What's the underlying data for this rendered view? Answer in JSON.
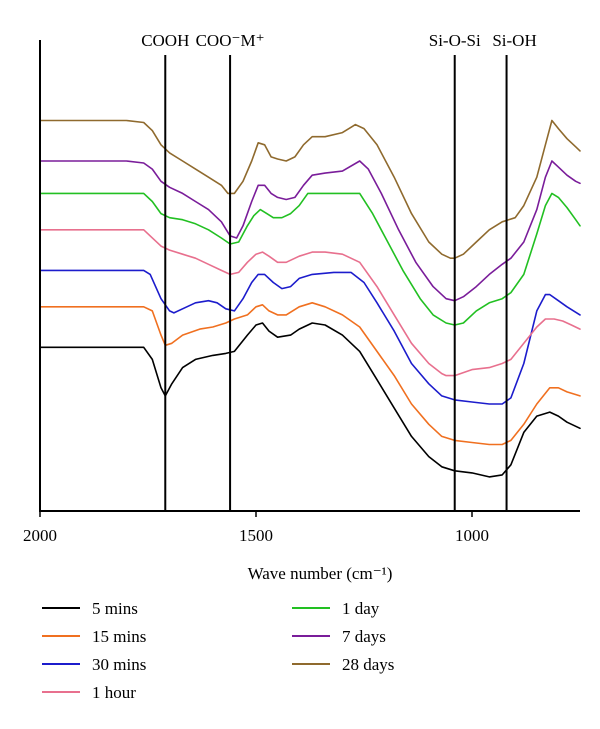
{
  "chart_data": {
    "type": "line",
    "title": "",
    "xlabel": "Wave number (cm⁻¹)",
    "ylabel": "",
    "x_reversed": true,
    "xlim": [
      2000,
      750
    ],
    "xticks": [
      {
        "value": 2000,
        "label": "2000"
      },
      {
        "value": 1500,
        "label": "1500"
      },
      {
        "value": 1000,
        "label": "1000"
      }
    ],
    "grid": false,
    "legend_position": "bottom",
    "annotations": [
      {
        "x": 1710,
        "label": "COOH"
      },
      {
        "x": 1560,
        "label": "COO⁻M⁺"
      },
      {
        "x": 1040,
        "label": "Si-O-Si"
      },
      {
        "x": 920,
        "label": "Si-OH"
      }
    ],
    "series": [
      {
        "name": "5 mins",
        "color": "#000000",
        "y_offset": 0,
        "points": [
          [
            2000,
            0.34
          ],
          [
            1900,
            0.34
          ],
          [
            1800,
            0.34
          ],
          [
            1760,
            0.34
          ],
          [
            1740,
            0.31
          ],
          [
            1720,
            0.24
          ],
          [
            1710,
            0.22
          ],
          [
            1695,
            0.25
          ],
          [
            1670,
            0.29
          ],
          [
            1640,
            0.31
          ],
          [
            1600,
            0.32
          ],
          [
            1570,
            0.325
          ],
          [
            1550,
            0.33
          ],
          [
            1520,
            0.37
          ],
          [
            1500,
            0.395
          ],
          [
            1485,
            0.4
          ],
          [
            1470,
            0.38
          ],
          [
            1450,
            0.365
          ],
          [
            1420,
            0.37
          ],
          [
            1400,
            0.385
          ],
          [
            1370,
            0.4
          ],
          [
            1340,
            0.395
          ],
          [
            1300,
            0.37
          ],
          [
            1260,
            0.33
          ],
          [
            1220,
            0.26
          ],
          [
            1180,
            0.19
          ],
          [
            1140,
            0.12
          ],
          [
            1100,
            0.07
          ],
          [
            1070,
            0.045
          ],
          [
            1040,
            0.035
          ],
          [
            1000,
            0.03
          ],
          [
            960,
            0.02
          ],
          [
            930,
            0.025
          ],
          [
            910,
            0.05
          ],
          [
            880,
            0.13
          ],
          [
            850,
            0.17
          ],
          [
            820,
            0.18
          ],
          [
            800,
            0.17
          ],
          [
            780,
            0.155
          ],
          [
            750,
            0.14
          ]
        ]
      },
      {
        "name": "15 mins",
        "color": "#f07020",
        "y_offset": 0,
        "points": [
          [
            2000,
            0.44
          ],
          [
            1900,
            0.44
          ],
          [
            1800,
            0.44
          ],
          [
            1760,
            0.44
          ],
          [
            1740,
            0.43
          ],
          [
            1720,
            0.37
          ],
          [
            1710,
            0.345
          ],
          [
            1695,
            0.35
          ],
          [
            1670,
            0.37
          ],
          [
            1630,
            0.385
          ],
          [
            1600,
            0.39
          ],
          [
            1570,
            0.4
          ],
          [
            1550,
            0.41
          ],
          [
            1520,
            0.42
          ],
          [
            1500,
            0.44
          ],
          [
            1485,
            0.445
          ],
          [
            1470,
            0.43
          ],
          [
            1450,
            0.42
          ],
          [
            1430,
            0.42
          ],
          [
            1400,
            0.44
          ],
          [
            1370,
            0.45
          ],
          [
            1340,
            0.44
          ],
          [
            1300,
            0.42
          ],
          [
            1260,
            0.39
          ],
          [
            1220,
            0.33
          ],
          [
            1180,
            0.27
          ],
          [
            1140,
            0.2
          ],
          [
            1100,
            0.15
          ],
          [
            1070,
            0.12
          ],
          [
            1040,
            0.11
          ],
          [
            1000,
            0.105
          ],
          [
            960,
            0.1
          ],
          [
            930,
            0.1
          ],
          [
            910,
            0.11
          ],
          [
            880,
            0.15
          ],
          [
            850,
            0.2
          ],
          [
            820,
            0.24
          ],
          [
            800,
            0.24
          ],
          [
            780,
            0.23
          ],
          [
            750,
            0.22
          ]
        ]
      },
      {
        "name": "30 mins",
        "color": "#1c1ccc",
        "y_offset": 0,
        "points": [
          [
            2000,
            0.53
          ],
          [
            1900,
            0.53
          ],
          [
            1800,
            0.53
          ],
          [
            1760,
            0.53
          ],
          [
            1745,
            0.52
          ],
          [
            1720,
            0.46
          ],
          [
            1700,
            0.43
          ],
          [
            1690,
            0.425
          ],
          [
            1670,
            0.435
          ],
          [
            1640,
            0.45
          ],
          [
            1610,
            0.455
          ],
          [
            1590,
            0.45
          ],
          [
            1570,
            0.435
          ],
          [
            1550,
            0.43
          ],
          [
            1530,
            0.46
          ],
          [
            1510,
            0.5
          ],
          [
            1495,
            0.52
          ],
          [
            1480,
            0.52
          ],
          [
            1460,
            0.5
          ],
          [
            1440,
            0.485
          ],
          [
            1420,
            0.49
          ],
          [
            1400,
            0.51
          ],
          [
            1370,
            0.52
          ],
          [
            1320,
            0.525
          ],
          [
            1280,
            0.525
          ],
          [
            1250,
            0.5
          ],
          [
            1220,
            0.45
          ],
          [
            1180,
            0.38
          ],
          [
            1140,
            0.3
          ],
          [
            1100,
            0.25
          ],
          [
            1070,
            0.22
          ],
          [
            1040,
            0.21
          ],
          [
            1000,
            0.205
          ],
          [
            960,
            0.2
          ],
          [
            930,
            0.2
          ],
          [
            910,
            0.215
          ],
          [
            880,
            0.3
          ],
          [
            850,
            0.43
          ],
          [
            830,
            0.47
          ],
          [
            820,
            0.47
          ],
          [
            800,
            0.455
          ],
          [
            780,
            0.44
          ],
          [
            750,
            0.42
          ]
        ]
      },
      {
        "name": "1 hour",
        "color": "#e8708e",
        "y_offset": 0,
        "points": [
          [
            2000,
            0.63
          ],
          [
            1900,
            0.63
          ],
          [
            1800,
            0.63
          ],
          [
            1760,
            0.63
          ],
          [
            1745,
            0.615
          ],
          [
            1720,
            0.59
          ],
          [
            1700,
            0.58
          ],
          [
            1670,
            0.57
          ],
          [
            1640,
            0.56
          ],
          [
            1610,
            0.545
          ],
          [
            1580,
            0.53
          ],
          [
            1560,
            0.52
          ],
          [
            1540,
            0.525
          ],
          [
            1520,
            0.55
          ],
          [
            1500,
            0.57
          ],
          [
            1485,
            0.575
          ],
          [
            1470,
            0.565
          ],
          [
            1450,
            0.55
          ],
          [
            1430,
            0.55
          ],
          [
            1400,
            0.565
          ],
          [
            1370,
            0.575
          ],
          [
            1340,
            0.575
          ],
          [
            1300,
            0.57
          ],
          [
            1260,
            0.55
          ],
          [
            1220,
            0.49
          ],
          [
            1180,
            0.42
          ],
          [
            1140,
            0.35
          ],
          [
            1100,
            0.3
          ],
          [
            1070,
            0.275
          ],
          [
            1060,
            0.27
          ],
          [
            1040,
            0.27
          ],
          [
            1000,
            0.285
          ],
          [
            960,
            0.29
          ],
          [
            930,
            0.3
          ],
          [
            910,
            0.31
          ],
          [
            880,
            0.35
          ],
          [
            850,
            0.39
          ],
          [
            830,
            0.41
          ],
          [
            810,
            0.41
          ],
          [
            790,
            0.405
          ],
          [
            770,
            0.395
          ],
          [
            750,
            0.385
          ]
        ]
      },
      {
        "name": "1 day",
        "color": "#22c022",
        "y_offset": 0,
        "points": [
          [
            2000,
            0.72
          ],
          [
            1900,
            0.72
          ],
          [
            1800,
            0.72
          ],
          [
            1760,
            0.72
          ],
          [
            1740,
            0.7
          ],
          [
            1720,
            0.67
          ],
          [
            1700,
            0.66
          ],
          [
            1670,
            0.655
          ],
          [
            1640,
            0.645
          ],
          [
            1610,
            0.63
          ],
          [
            1580,
            0.61
          ],
          [
            1560,
            0.595
          ],
          [
            1540,
            0.6
          ],
          [
            1520,
            0.64
          ],
          [
            1505,
            0.665
          ],
          [
            1490,
            0.68
          ],
          [
            1475,
            0.67
          ],
          [
            1460,
            0.66
          ],
          [
            1440,
            0.66
          ],
          [
            1420,
            0.67
          ],
          [
            1400,
            0.69
          ],
          [
            1380,
            0.72
          ],
          [
            1340,
            0.72
          ],
          [
            1300,
            0.72
          ],
          [
            1260,
            0.72
          ],
          [
            1230,
            0.67
          ],
          [
            1200,
            0.61
          ],
          [
            1160,
            0.53
          ],
          [
            1120,
            0.46
          ],
          [
            1090,
            0.42
          ],
          [
            1060,
            0.4
          ],
          [
            1040,
            0.395
          ],
          [
            1020,
            0.4
          ],
          [
            990,
            0.43
          ],
          [
            960,
            0.45
          ],
          [
            930,
            0.46
          ],
          [
            910,
            0.475
          ],
          [
            880,
            0.52
          ],
          [
            850,
            0.62
          ],
          [
            830,
            0.69
          ],
          [
            815,
            0.72
          ],
          [
            800,
            0.71
          ],
          [
            780,
            0.685
          ],
          [
            760,
            0.655
          ],
          [
            750,
            0.64
          ]
        ]
      },
      {
        "name": "7 days",
        "color": "#7a1d9a",
        "y_offset": 0,
        "points": [
          [
            2000,
            0.8
          ],
          [
            1900,
            0.8
          ],
          [
            1800,
            0.8
          ],
          [
            1760,
            0.795
          ],
          [
            1740,
            0.78
          ],
          [
            1720,
            0.75
          ],
          [
            1700,
            0.735
          ],
          [
            1670,
            0.72
          ],
          [
            1640,
            0.7
          ],
          [
            1610,
            0.68
          ],
          [
            1580,
            0.65
          ],
          [
            1560,
            0.615
          ],
          [
            1545,
            0.61
          ],
          [
            1530,
            0.64
          ],
          [
            1510,
            0.7
          ],
          [
            1495,
            0.74
          ],
          [
            1480,
            0.74
          ],
          [
            1465,
            0.72
          ],
          [
            1450,
            0.71
          ],
          [
            1430,
            0.705
          ],
          [
            1410,
            0.71
          ],
          [
            1390,
            0.74
          ],
          [
            1370,
            0.765
          ],
          [
            1340,
            0.77
          ],
          [
            1300,
            0.775
          ],
          [
            1260,
            0.8
          ],
          [
            1240,
            0.78
          ],
          [
            1210,
            0.72
          ],
          [
            1170,
            0.63
          ],
          [
            1130,
            0.55
          ],
          [
            1090,
            0.49
          ],
          [
            1060,
            0.46
          ],
          [
            1040,
            0.455
          ],
          [
            1020,
            0.465
          ],
          [
            990,
            0.49
          ],
          [
            960,
            0.52
          ],
          [
            930,
            0.545
          ],
          [
            910,
            0.56
          ],
          [
            880,
            0.6
          ],
          [
            850,
            0.68
          ],
          [
            830,
            0.76
          ],
          [
            815,
            0.8
          ],
          [
            800,
            0.785
          ],
          [
            780,
            0.765
          ],
          [
            760,
            0.75
          ],
          [
            750,
            0.745
          ]
        ]
      },
      {
        "name": "28 days",
        "color": "#8f6a2e",
        "y_offset": 0,
        "points": [
          [
            2000,
            0.9
          ],
          [
            1900,
            0.9
          ],
          [
            1800,
            0.9
          ],
          [
            1760,
            0.895
          ],
          [
            1740,
            0.875
          ],
          [
            1720,
            0.84
          ],
          [
            1700,
            0.82
          ],
          [
            1670,
            0.8
          ],
          [
            1640,
            0.78
          ],
          [
            1610,
            0.76
          ],
          [
            1580,
            0.74
          ],
          [
            1565,
            0.72
          ],
          [
            1550,
            0.72
          ],
          [
            1530,
            0.75
          ],
          [
            1510,
            0.8
          ],
          [
            1495,
            0.845
          ],
          [
            1480,
            0.84
          ],
          [
            1465,
            0.81
          ],
          [
            1450,
            0.805
          ],
          [
            1430,
            0.8
          ],
          [
            1410,
            0.81
          ],
          [
            1390,
            0.84
          ],
          [
            1370,
            0.86
          ],
          [
            1340,
            0.86
          ],
          [
            1300,
            0.87
          ],
          [
            1270,
            0.89
          ],
          [
            1250,
            0.88
          ],
          [
            1220,
            0.84
          ],
          [
            1180,
            0.76
          ],
          [
            1140,
            0.67
          ],
          [
            1100,
            0.6
          ],
          [
            1070,
            0.57
          ],
          [
            1050,
            0.56
          ],
          [
            1040,
            0.56
          ],
          [
            1020,
            0.57
          ],
          [
            990,
            0.6
          ],
          [
            960,
            0.63
          ],
          [
            930,
            0.65
          ],
          [
            900,
            0.66
          ],
          [
            880,
            0.69
          ],
          [
            850,
            0.76
          ],
          [
            830,
            0.84
          ],
          [
            815,
            0.9
          ],
          [
            800,
            0.88
          ],
          [
            780,
            0.855
          ],
          [
            760,
            0.835
          ],
          [
            750,
            0.825
          ]
        ]
      }
    ]
  }
}
